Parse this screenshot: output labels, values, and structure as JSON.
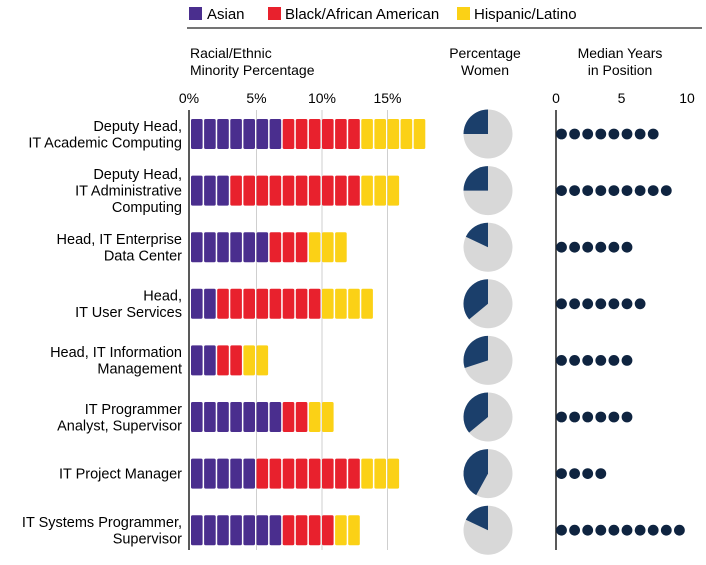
{
  "chart_data": {
    "type": "bar",
    "legend": [
      {
        "key": "asian",
        "label": "Asian",
        "color": "#4a2e8e"
      },
      {
        "key": "black",
        "label": "Black/African American",
        "color": "#e8212d"
      },
      {
        "key": "hispanic",
        "label": "Hispanic/Latino",
        "color": "#fbd116"
      }
    ],
    "panels": {
      "minority": {
        "title_line1": "Racial/Ethnic",
        "title_line2": "Minority Percentage",
        "ticks": [
          {
            "value": 0,
            "label": "0%"
          },
          {
            "value": 5,
            "label": "5%"
          },
          {
            "value": 10,
            "label": "10%"
          },
          {
            "value": 15,
            "label": "15%"
          }
        ],
        "xlim": [
          0,
          18
        ],
        "unit_per_block": 1
      },
      "women": {
        "title_line1": "Percentage",
        "title_line2": "Women",
        "pie_color": "#1b3f6b",
        "pie_bg": "#d8d8d8"
      },
      "years": {
        "title_line1": "Median Years",
        "title_line2": "in Position",
        "ticks": [
          {
            "value": 0,
            "label": "0"
          },
          {
            "value": 5,
            "label": "5"
          },
          {
            "value": 10,
            "label": "10"
          }
        ],
        "xlim": [
          0,
          10
        ],
        "dot_color": "#0f2440"
      }
    },
    "categories": [
      {
        "line1": "Deputy Head,",
        "line2": "IT Academic Computing",
        "line3": "",
        "asian": 7,
        "black": 6,
        "hispanic": 5,
        "women_pct": 25,
        "years": 8
      },
      {
        "line1": "Deputy Head,",
        "line2": "IT Administrative",
        "line3": "Computing",
        "asian": 3,
        "black": 10,
        "hispanic": 3,
        "women_pct": 25,
        "years": 9
      },
      {
        "line1": "Head, IT Enterprise",
        "line2": "Data Center",
        "line3": "",
        "asian": 6,
        "black": 3,
        "hispanic": 3,
        "women_pct": 18,
        "years": 6
      },
      {
        "line1": "Head,",
        "line2": "IT User Services",
        "line3": "",
        "asian": 2,
        "black": 8,
        "hispanic": 4,
        "women_pct": 36,
        "years": 7
      },
      {
        "line1": "Head, IT Information",
        "line2": "Management",
        "line3": "",
        "asian": 2,
        "black": 2,
        "hispanic": 2,
        "women_pct": 30,
        "years": 6
      },
      {
        "line1": "IT Programmer",
        "line2": "Analyst, Supervisor",
        "line3": "",
        "asian": 7,
        "black": 2,
        "hispanic": 2,
        "women_pct": 36,
        "years": 6
      },
      {
        "line1": "IT Project Manager",
        "line2": "",
        "line3": "",
        "asian": 5,
        "black": 8,
        "hispanic": 3,
        "women_pct": 42,
        "years": 4
      },
      {
        "line1": "IT Systems Programmer,",
        "line2": "Supervisor",
        "line3": "",
        "asian": 7,
        "black": 4,
        "hispanic": 2,
        "women_pct": 18,
        "years": 10
      }
    ]
  }
}
